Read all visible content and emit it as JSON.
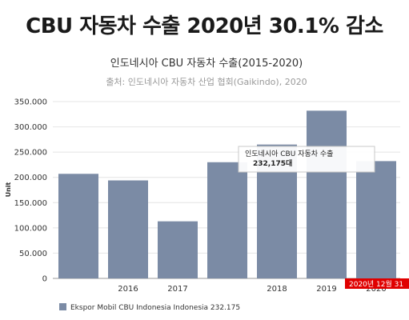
{
  "headline": "CBU 자동차 수출 2020년 30.1% 감소",
  "chart_data": {
    "type": "bar",
    "title": "인도네시아 CBU 자동차 수출(2015-2020)",
    "subtitle": "출처: 인도네시아 자동차 산업 협회(Gaikindo), 2020",
    "ylabel": "Unit",
    "ylim": [
      0,
      350000
    ],
    "yticks": [
      "0",
      "50.000",
      "100.000",
      "150.000",
      "200.000",
      "250.000",
      "300.000",
      "350.000"
    ],
    "values": [
      207000,
      194000,
      113000,
      230000,
      265000,
      332000,
      232175
    ],
    "x_tick_labels": [
      "",
      "2016",
      "2017",
      "",
      "2018",
      "2019",
      "2020"
    ],
    "grid": true,
    "bar_color": "#7b8ba5",
    "series": [
      {
        "name": "Ekspor Mobil CBU Indonesia Indonesia 232.175"
      }
    ],
    "legend_position": "bottom-left",
    "tooltip": {
      "title": "인도네시아 CBU 자동차 수출",
      "value": "232,175대"
    },
    "date_badge": "2020년 12월 31",
    "date_badge_color": "#e00000"
  }
}
